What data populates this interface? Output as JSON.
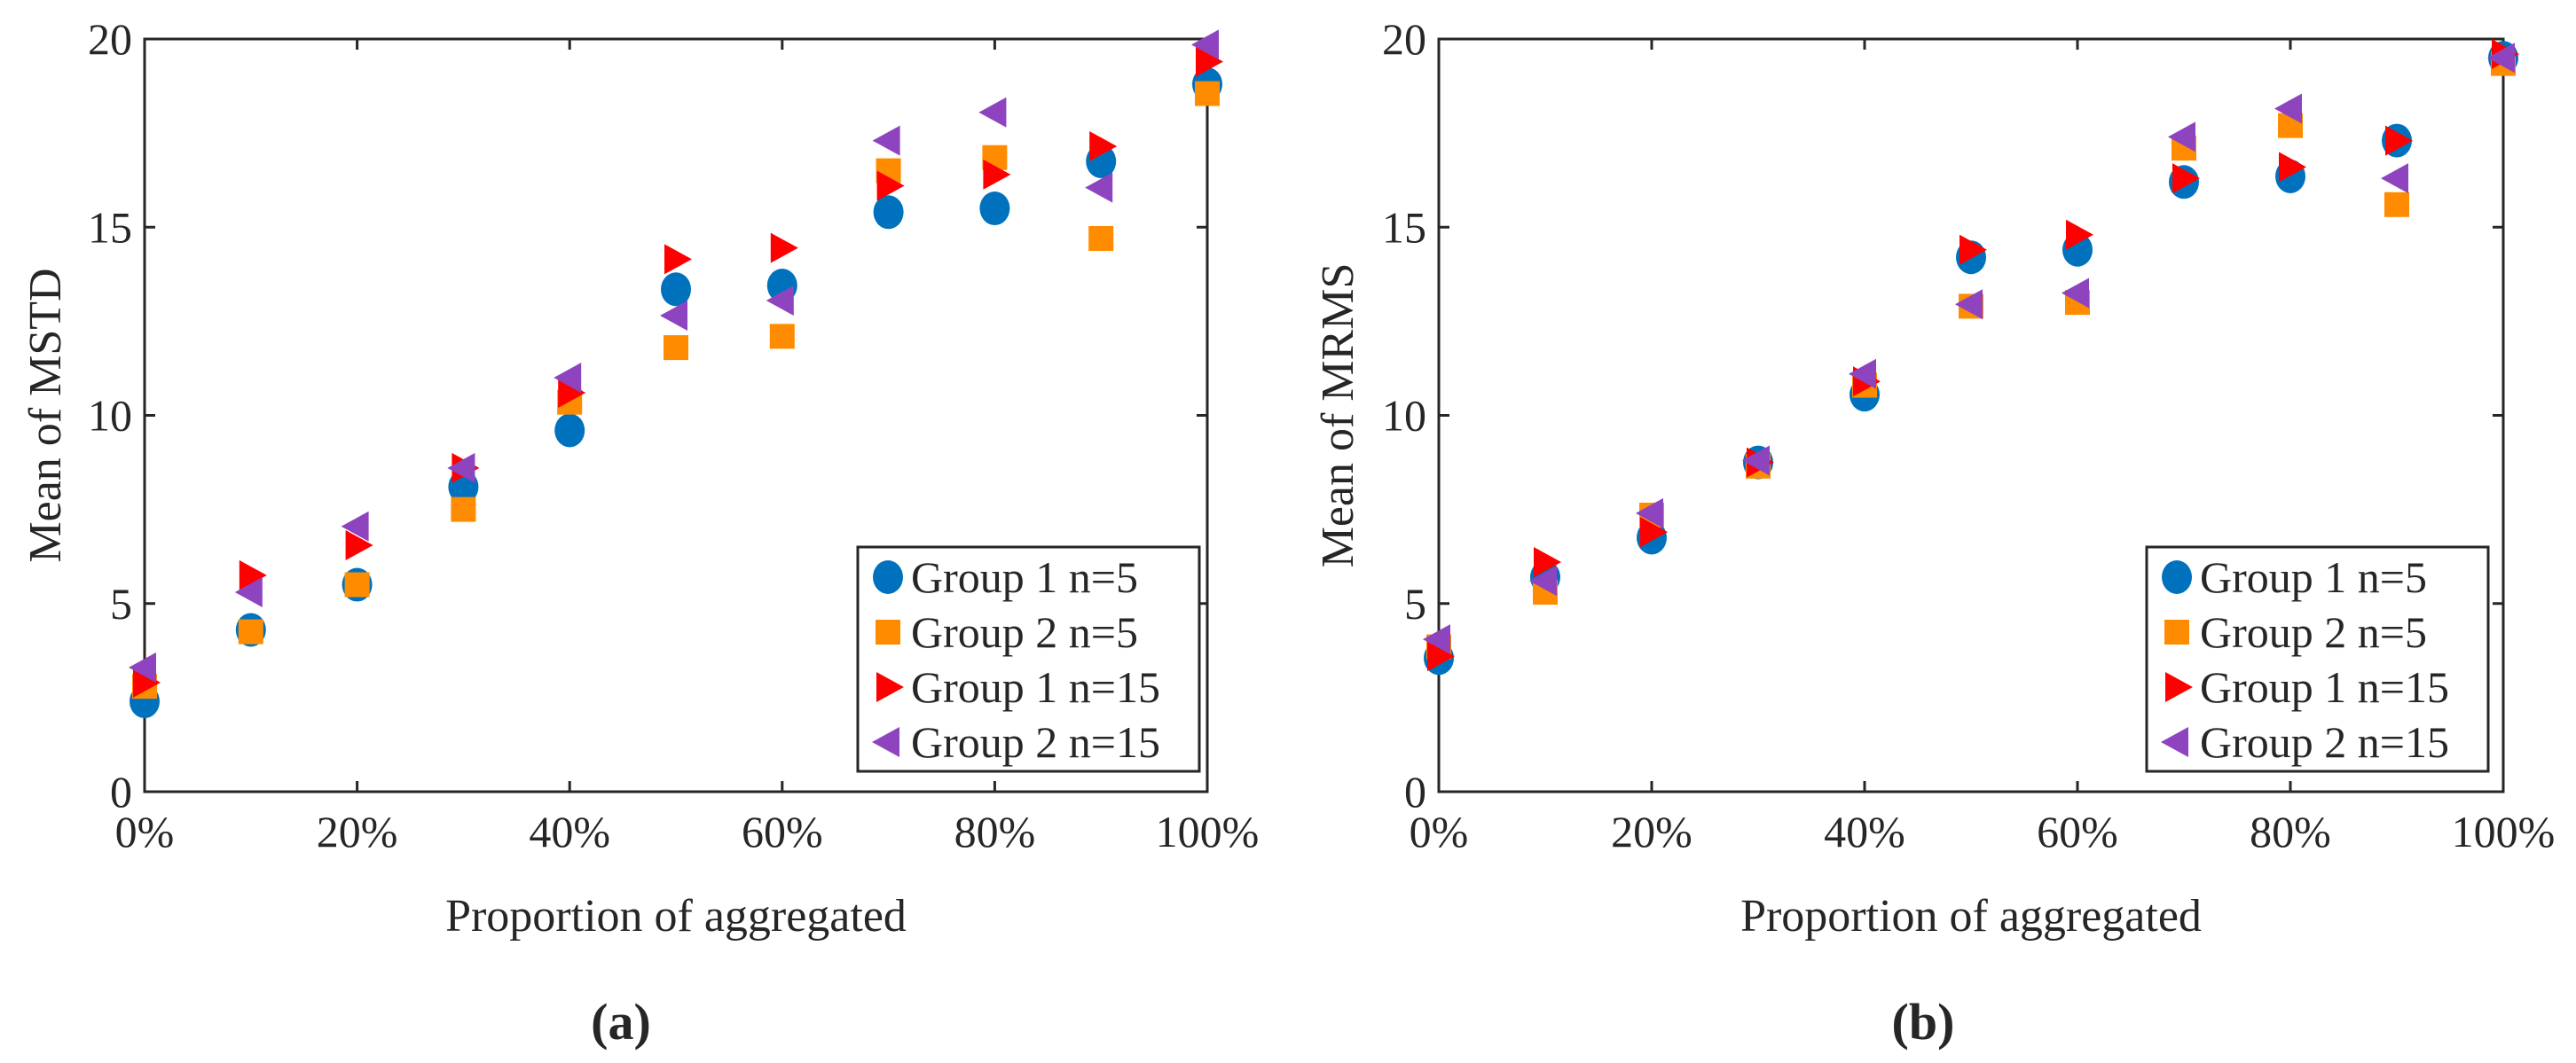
{
  "colors": {
    "g1n5": "#0072BD",
    "g2n5": "#FF8C00",
    "g1n15": "#FF0000",
    "g2n15": "#8E44BE",
    "axis": "#262626"
  },
  "chart_data": [
    {
      "type": "scatter",
      "panel_label": "(a)",
      "xlabel": "Proportion of aggregated",
      "ylabel": "Mean of MSTD",
      "x": [
        0,
        10,
        20,
        30,
        40,
        50,
        60,
        70,
        80,
        90,
        100
      ],
      "xticks": [
        "0%",
        "20%",
        "40%",
        "60%",
        "80%",
        "100%"
      ],
      "xtick_values": [
        0,
        20,
        40,
        60,
        80,
        100
      ],
      "yticks": [
        "0",
        "5",
        "10",
        "15",
        "20"
      ],
      "ytick_values": [
        0,
        5,
        10,
        15,
        20
      ],
      "xlim": [
        0,
        100
      ],
      "ylim": [
        0,
        20
      ],
      "legend_position": "bottom-right",
      "series": [
        {
          "name": "Group 1 n=5",
          "marker": "circle",
          "color_key": "g1n5",
          "values": [
            2.4,
            4.3,
            5.5,
            8.1,
            9.6,
            13.35,
            13.45,
            15.4,
            15.5,
            16.75,
            18.8
          ]
        },
        {
          "name": "Group 2 n=5",
          "marker": "square",
          "color_key": "g2n5",
          "values": [
            2.8,
            4.25,
            5.5,
            7.5,
            10.35,
            11.8,
            12.1,
            16.5,
            16.85,
            14.7,
            18.55
          ]
        },
        {
          "name": "Group 1 n=15",
          "marker": "triangle-right",
          "color_key": "g1n15",
          "values": [
            2.9,
            5.75,
            6.55,
            8.6,
            10.6,
            14.15,
            14.45,
            16.1,
            16.4,
            17.15,
            19.4
          ]
        },
        {
          "name": "Group 2 n=15",
          "marker": "triangle-left",
          "color_key": "g2n15",
          "values": [
            3.3,
            5.3,
            7.05,
            8.6,
            11.0,
            12.65,
            13.05,
            17.3,
            18.05,
            16.05,
            19.85
          ]
        }
      ]
    },
    {
      "type": "scatter",
      "panel_label": "(b)",
      "xlabel": "Proportion of aggregated",
      "ylabel": "Mean of MRMS",
      "x": [
        0,
        10,
        20,
        30,
        40,
        50,
        60,
        70,
        80,
        90,
        100
      ],
      "xticks": [
        "0%",
        "20%",
        "40%",
        "60%",
        "80%",
        "100%"
      ],
      "xtick_values": [
        0,
        20,
        40,
        60,
        80,
        100
      ],
      "yticks": [
        "0",
        "5",
        "10",
        "15",
        "20"
      ],
      "ytick_values": [
        0,
        5,
        10,
        15,
        20
      ],
      "xlim": [
        0,
        100
      ],
      "ylim": [
        0,
        20
      ],
      "legend_position": "bottom-right",
      "series": [
        {
          "name": "Group 1 n=5",
          "marker": "circle",
          "color_key": "g1n5",
          "values": [
            3.55,
            5.7,
            6.75,
            8.75,
            10.55,
            14.2,
            14.4,
            16.2,
            16.35,
            17.3,
            19.5
          ]
        },
        {
          "name": "Group 2 n=5",
          "marker": "square",
          "color_key": "g2n5",
          "values": [
            3.85,
            5.3,
            7.35,
            8.65,
            10.8,
            12.9,
            13.0,
            17.1,
            17.7,
            15.6,
            19.35
          ]
        },
        {
          "name": "Group 1 n=15",
          "marker": "triangle-right",
          "color_key": "g1n15",
          "values": [
            3.6,
            6.1,
            6.9,
            8.75,
            10.9,
            14.4,
            14.8,
            16.3,
            16.6,
            17.3,
            19.6
          ]
        },
        {
          "name": "Group 2 n=15",
          "marker": "triangle-left",
          "color_key": "g2n15",
          "values": [
            4.05,
            5.6,
            7.4,
            8.8,
            11.1,
            12.95,
            13.25,
            17.4,
            18.15,
            16.3,
            19.5
          ]
        }
      ]
    }
  ]
}
